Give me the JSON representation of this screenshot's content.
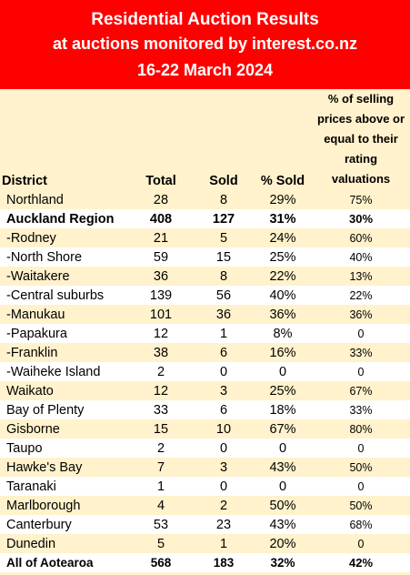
{
  "title": {
    "line1": "Residential Auction Results",
    "line2": "at auctions monitored by interest.co.nz",
    "line3": "16-22 March 2024"
  },
  "headers": {
    "district": "District",
    "total": "Total",
    "sold": "Sold",
    "pct_sold": "% Sold",
    "pct_selling_l1": "% of selling",
    "pct_selling_l2": "prices above or",
    "pct_selling_l3": "equal to their",
    "pct_selling_l4": "rating valuations"
  },
  "rows": [
    {
      "district": "Northland",
      "total": "28",
      "sold": "8",
      "pct_sold": "29%",
      "pct_above": "75%"
    },
    {
      "district": "Auckland Region",
      "total": "408",
      "sold": "127",
      "pct_sold": "31%",
      "pct_above": "30%"
    },
    {
      "district": "-Rodney",
      "total": "21",
      "sold": "5",
      "pct_sold": "24%",
      "pct_above": "60%"
    },
    {
      "district": "-North Shore",
      "total": "59",
      "sold": "15",
      "pct_sold": "25%",
      "pct_above": "40%"
    },
    {
      "district": "-Waitakere",
      "total": "36",
      "sold": "8",
      "pct_sold": "22%",
      "pct_above": "13%"
    },
    {
      "district": "-Central suburbs",
      "total": "139",
      "sold": "56",
      "pct_sold": "40%",
      "pct_above": "22%"
    },
    {
      "district": "-Manukau",
      "total": "101",
      "sold": "36",
      "pct_sold": "36%",
      "pct_above": "36%"
    },
    {
      "district": "-Papakura",
      "total": "12",
      "sold": "1",
      "pct_sold": "8%",
      "pct_above": "0"
    },
    {
      "district": "-Franklin",
      "total": "38",
      "sold": "6",
      "pct_sold": "16%",
      "pct_above": "33%"
    },
    {
      "district": "-Waiheke Island",
      "total": "2",
      "sold": "0",
      "pct_sold": "0",
      "pct_above": "0"
    },
    {
      "district": "Waikato",
      "total": "12",
      "sold": "3",
      "pct_sold": "25%",
      "pct_above": "67%"
    },
    {
      "district": "Bay of Plenty",
      "total": "33",
      "sold": "6",
      "pct_sold": "18%",
      "pct_above": "33%"
    },
    {
      "district": "Gisborne",
      "total": "15",
      "sold": "10",
      "pct_sold": "67%",
      "pct_above": "80%"
    },
    {
      "district": "Taupo",
      "total": "2",
      "sold": "0",
      "pct_sold": "0",
      "pct_above": "0"
    },
    {
      "district": "Hawke's Bay",
      "total": "7",
      "sold": "3",
      "pct_sold": "43%",
      "pct_above": "50%"
    },
    {
      "district": "Taranaki",
      "total": "1",
      "sold": "0",
      "pct_sold": "0",
      "pct_above": "0"
    },
    {
      "district": "Marlborough",
      "total": "4",
      "sold": "2",
      "pct_sold": "50%",
      "pct_above": "50%"
    },
    {
      "district": "Canterbury",
      "total": "53",
      "sold": "23",
      "pct_sold": "43%",
      "pct_above": "68%"
    },
    {
      "district": "Dunedin",
      "total": "5",
      "sold": "1",
      "pct_sold": "20%",
      "pct_above": "0"
    },
    {
      "district": "All of Aotearoa",
      "total": "568",
      "sold": "183",
      "pct_sold": "32%",
      "pct_above": "42%"
    }
  ],
  "colors": {
    "banner": "#ff0000",
    "banner_text": "#ffffff",
    "row_shade": "#fff2cc",
    "row_plain": "#ffffff"
  }
}
